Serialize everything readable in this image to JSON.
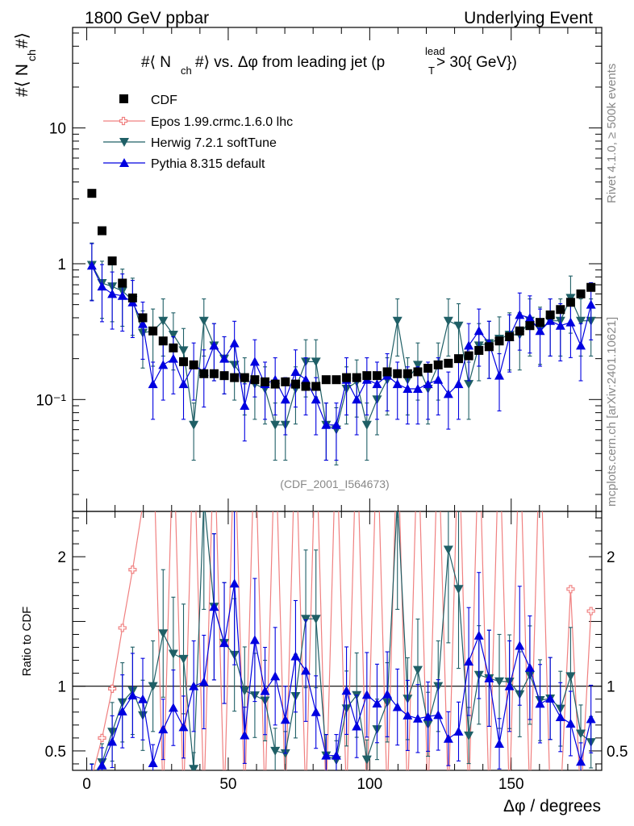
{
  "header": {
    "left": "1800 GeV ppbar",
    "right": "Underlying Event"
  },
  "side_labels": {
    "rivet": "Rivet 4.1.0, ≥ 500k events",
    "mcplots": "mcplots.cern.ch [arXiv:2401.10621]"
  },
  "colors": {
    "CDF": "#000000",
    "Epos": "#f08080",
    "Herwig": "#1f5f66",
    "Pythia": "#0000e0"
  },
  "chart_data": [
    {
      "type": "scatter",
      "title": "#⟨ N_ch#⟩ vs. Δφ from leading jet  (p_T^lead > 30{ GeV})",
      "title_parts": {
        "t1": "#⟨ N",
        "t2": "ch",
        "t3": "#⟩ vs. Δφ from leading jet  (p",
        "t4": "T",
        "t5": "lead",
        "t6": " > 30{ GeV})"
      },
      "ylabel": "#⟨ N_ch#⟩",
      "ylabel_parts": {
        "a": "#⟨ N",
        "b": "ch",
        "c": "#⟩"
      },
      "yscale": "log",
      "ylim": [
        0.015,
        55
      ],
      "xlim": [
        -5,
        182
      ],
      "y_ticks": [
        {
          "v": 0.1,
          "label": "10⁻¹"
        },
        {
          "v": 1,
          "label": "1"
        },
        {
          "v": 10,
          "label": "10"
        }
      ],
      "watermark": "(CDF_2001_I564673)",
      "x": [
        1.8,
        5.4,
        9.0,
        12.6,
        16.2,
        19.8,
        23.4,
        27.0,
        30.6,
        34.2,
        37.8,
        41.4,
        45.0,
        48.6,
        52.2,
        55.8,
        59.4,
        63.0,
        66.6,
        70.2,
        73.8,
        77.4,
        81.0,
        84.6,
        88.2,
        91.8,
        95.4,
        99.0,
        102.6,
        106.2,
        109.8,
        113.4,
        117.0,
        120.6,
        124.2,
        127.8,
        131.4,
        135.0,
        138.6,
        142.2,
        145.8,
        149.4,
        153.0,
        156.6,
        160.2,
        163.8,
        167.4,
        171.0,
        174.6,
        178.2
      ],
      "series": [
        {
          "name": "CDF",
          "marker": "square",
          "values": [
            3.3,
            1.75,
            1.05,
            0.72,
            0.56,
            0.4,
            0.32,
            0.27,
            0.24,
            0.19,
            0.18,
            0.155,
            0.155,
            0.15,
            0.145,
            0.145,
            0.14,
            0.135,
            0.13,
            0.135,
            0.13,
            0.125,
            0.125,
            0.14,
            0.14,
            0.145,
            0.145,
            0.15,
            0.15,
            0.16,
            0.155,
            0.155,
            0.16,
            0.17,
            0.18,
            0.185,
            0.2,
            0.21,
            0.23,
            0.245,
            0.27,
            0.29,
            0.32,
            0.35,
            0.37,
            0.42,
            0.46,
            0.52,
            0.6,
            0.67
          ]
        },
        {
          "name": "Epos 1.99.crmc.1.6.0 lhc",
          "marker": "cross-open",
          "ratio_values": [
            0.3,
            0.6,
            0.98,
            1.45,
            1.9,
            2.4,
            3.0,
            0.1,
            3.0,
            0.1,
            3.0,
            0.1,
            3.0,
            0.1,
            3.0,
            0.1,
            3.0,
            0.1,
            3.0,
            0.1,
            3.0,
            0.1,
            3.0,
            0.1,
            3.0,
            0.1,
            3.0,
            0.1,
            3.0,
            0.1,
            3.0,
            0.1,
            3.0,
            0.1,
            3.0,
            0.1,
            3.0,
            0.1,
            3.0,
            0.1,
            3.0,
            0.1,
            3.0,
            0.1,
            3.0,
            0.1,
            0.1,
            1.75,
            0.1,
            1.58
          ]
        },
        {
          "name": "Herwig 7.2.1 softTune",
          "marker": "triangle-down",
          "values": [
            0.98,
            0.72,
            0.68,
            0.63,
            0.54,
            0.31,
            0.32,
            0.38,
            0.3,
            0.23,
            0.065,
            0.38,
            0.25,
            0.2,
            0.18,
            0.14,
            0.13,
            0.12,
            0.065,
            0.065,
            0.12,
            0.19,
            0.19,
            0.065,
            0.06,
            0.12,
            0.135,
            0.065,
            0.1,
            0.14,
            0.38,
            0.14,
            0.18,
            0.12,
            0.18,
            0.38,
            0.35,
            0.13,
            0.25,
            0.26,
            0.28,
            0.3,
            0.3,
            0.38,
            0.33,
            0.38,
            0.38,
            0.56,
            0.38,
            0.38
          ]
        }
      ]
    },
    {
      "type": "line",
      "ylabel": "Ratio to CDF",
      "xlabel": "Δφ / degrees",
      "xlim": [
        -5,
        182
      ],
      "ylim": [
        0.35,
        2.35
      ],
      "reference_line": 1,
      "x_ticks": [
        0,
        50,
        100,
        150
      ],
      "y_ticks": [
        {
          "v": 0.5,
          "label": "0.5"
        },
        {
          "v": 1,
          "label": "1"
        },
        {
          "v": 2,
          "label": "2"
        }
      ]
    }
  ],
  "legend": [
    {
      "label": "CDF"
    },
    {
      "label": "Epos 1.99.crmc.1.6.0 lhc"
    },
    {
      "label": "Herwig 7.2.1 softTune"
    },
    {
      "label": "Pythia 8.315 default"
    }
  ],
  "pythia_values": [
    0.97,
    0.68,
    0.6,
    0.58,
    0.52,
    0.36,
    0.13,
    0.18,
    0.2,
    0.13,
    0.18,
    0.16,
    0.25,
    0.2,
    0.26,
    0.09,
    0.19,
    0.13,
    0.14,
    0.1,
    0.16,
    0.14,
    0.1,
    0.065,
    0.065,
    0.14,
    0.1,
    0.14,
    0.13,
    0.15,
    0.13,
    0.12,
    0.12,
    0.13,
    0.14,
    0.11,
    0.13,
    0.25,
    0.32,
    0.26,
    0.15,
    0.29,
    0.42,
    0.4,
    0.32,
    0.38,
    0.35,
    0.37,
    0.25,
    0.5
  ]
}
